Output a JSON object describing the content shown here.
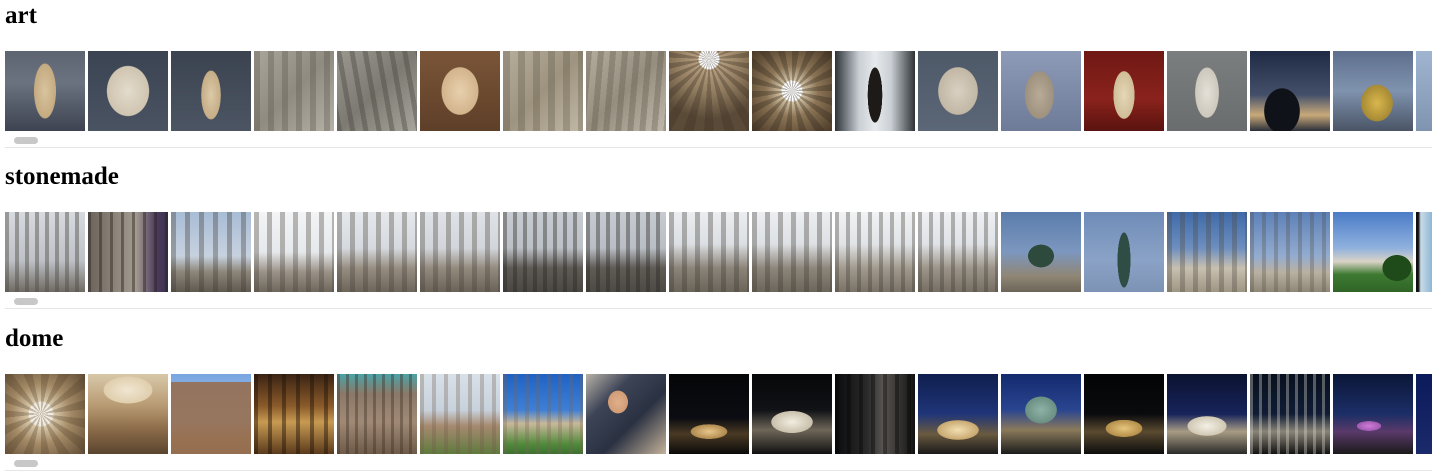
{
  "sections": [
    {
      "title": "art",
      "images": [
        {
          "name": "armless-female-statue-thumbnail",
          "bg": "linear-gradient(180deg,#5d6471 0%,#6b7380 40%,#3d4350 100%)",
          "fg": "radial-gradient(ellipse 18px 45px at 50% 50%, #d8c49f 0%, #c4aa80 60%, transparent 62%)"
        },
        {
          "name": "marble-head-thumbnail",
          "bg": "linear-gradient(180deg,#3b4452 0%,#4a5362 100%)",
          "fg": "radial-gradient(ellipse 32px 38px at 50% 50%, #e3dbcc 0%, #cfc4b0 65%, transparent 67%)"
        },
        {
          "name": "standing-statue-thumbnail",
          "bg": "linear-gradient(180deg,#3b4350 0%,#4c5563 100%)",
          "fg": "radial-gradient(ellipse 16px 40px at 50% 55%, #dbc9a8 0%, #c5ad86 60%, transparent 62%)"
        },
        {
          "name": "relief-panel-thumbnail",
          "bg": "linear-gradient(135deg,#a9a59b 0%,#8f8b80 50%,#b6b1a6 100%)",
          "fg": "repeating-linear-gradient(90deg, rgba(90,86,78,0.35) 0 6px, transparent 6px 14px)"
        },
        {
          "name": "carved-relief-thumbnail",
          "bg": "linear-gradient(135deg,#9a978f 0%,#7d7a72 50%,#a8a59c 100%)",
          "fg": "repeating-linear-gradient(80deg, rgba(70,68,62,0.4) 0 5px, transparent 5px 13px)"
        },
        {
          "name": "female-bust-thumbnail",
          "bg": "linear-gradient(180deg,#7a5538 0%,#5e3f28 100%)",
          "fg": "radial-gradient(ellipse 28px 36px at 50% 50%, #e8d0ae 0%, #d2b48c 65%, transparent 67%)"
        },
        {
          "name": "frieze-figures-thumbnail",
          "bg": "linear-gradient(135deg,#b7ad9b 0%,#9d937f 50%,#c2b8a6 100%)",
          "fg": "repeating-linear-gradient(90deg, rgba(100,92,78,0.35) 0 7px, transparent 7px 15px)"
        },
        {
          "name": "sarcophagus-relief-thumbnail",
          "bg": "linear-gradient(135deg,#b3ab9c 0%,#958d7e 50%,#c0b8aa 100%)",
          "fg": "repeating-linear-gradient(95deg, rgba(95,88,75,0.35) 0 6px, transparent 6px 12px)"
        },
        {
          "name": "coffered-ceiling-thumbnail",
          "bg": "radial-gradient(circle at 50% 10%, #ffffff 0 10px, #b69f80 11px, #8f7a5e 35px, #5a4a38 60px)",
          "fg": "repeating-conic-gradient(from 0deg at 50% 10%, rgba(60,48,36,0.35) 0 8deg, transparent 8deg 16deg)"
        },
        {
          "name": "dome-oculus-thumbnail",
          "bg": "radial-gradient(circle at 50% 50%, #ffffff 0 10px, #d2c2a4 11px, #8c7556 26px, #4d3c2a 55px)",
          "fg": "repeating-conic-gradient(from 0deg at 50% 50%, rgba(50,40,28,0.35) 0 10deg, transparent 10deg 20deg)"
        },
        {
          "name": "bronze-figure-thumbnail",
          "bg": "linear-gradient(90deg,#2e3338 0%,#c9cfd4 30%,#e7eaec 50%,#c9cfd4 70%,#2e3338 100%)",
          "fg": "radial-gradient(ellipse 9px 34px at 50% 55%, #1d1a17 0%, #1d1a17 80%, transparent 82%)"
        },
        {
          "name": "stone-face-thumbnail",
          "bg": "linear-gradient(180deg,#4e5968 0%,#5b6677 100%)",
          "fg": "radial-gradient(ellipse 30px 36px at 50% 50%, #d9d0c2 0%, #c2b7a5 65%, transparent 67%)"
        },
        {
          "name": "seated-statue-thumbnail",
          "bg": "linear-gradient(180deg,#8d9bb8 0%,#6d7b98 100%)",
          "fg": "radial-gradient(ellipse 22px 36px at 48% 55%, #b8ab98 0%, #9e917d 65%, transparent 67%)"
        },
        {
          "name": "red-wall-statue-thumbnail",
          "bg": "linear-gradient(180deg,#6f1814 0%,#8a221c 60%,#5a130f 100%)",
          "fg": "radial-gradient(ellipse 16px 36px at 50% 55%, #e6d7b8 0%, #cfbd97 65%, transparent 67%)"
        },
        {
          "name": "draped-statue-thumbnail",
          "bg": "linear-gradient(180deg,#7b7e7f 0%,#6a6d6e 100%)",
          "fg": "radial-gradient(ellipse 18px 38px at 50% 52%, #e4e0d8 0%, #cdc8bd 65%, transparent 67%)"
        },
        {
          "name": "eiffel-silhouette-thumbnail",
          "bg": "linear-gradient(180deg,#1f2b44 0%,#44506a 55%,#c9a97a 80%,#2a2f3a 100%)",
          "fg": "radial-gradient(ellipse 22px 28px at 40% 75%, #0f1218 0%, #0f1218 80%, transparent 82%)"
        },
        {
          "name": "gilded-ornament-thumbnail",
          "bg": "linear-gradient(180deg,#5d6f8c 0%,#7f92ae 50%,#4a5465 100%)",
          "fg": "radial-gradient(ellipse 26px 30px at 55% 65%, #d9b74d 0%, #a78a34 60%, transparent 62%)"
        },
        {
          "name": "partial-thumbnail",
          "bg": "linear-gradient(180deg,#9fb5d0 0%,#7f94b0 100%)",
          "fg": "none"
        }
      ]
    },
    {
      "title": "stonemade",
      "images": [
        {
          "name": "gate-sign-thumbnail",
          "bg": "linear-gradient(180deg,#d7dadf 0%,#bfc3c8 60%,#6f6a62 100%)",
          "fg": "repeating-linear-gradient(90deg, rgba(80,76,70,0.45) 0 4px, transparent 4px 10px)"
        },
        {
          "name": "columns-flags-thumbnail",
          "bg": "linear-gradient(90deg,#6b625a 0%,#8d857c 35%,#a39b90 60%,#4e3b5c 85%,#3a3150 100%)",
          "fg": "repeating-linear-gradient(90deg, rgba(40,36,32,0.45) 0 3px, transparent 3px 11px)"
        },
        {
          "name": "brandenburg-gate-angle-thumbnail",
          "bg": "linear-gradient(180deg,#a8bcd6 0%,#c7d2df 55%,#8d8579 75%,#5f5950 100%)",
          "fg": "repeating-linear-gradient(90deg, rgba(60,56,50,0.35) 0 5px, transparent 5px 14px)"
        },
        {
          "name": "brandenburg-gate-bright-thumbnail",
          "bg": "linear-gradient(180deg,#f2f4f6 0%,#e6e9ec 50%,#9a9287 75%,#6f675c 100%)",
          "fg": "repeating-linear-gradient(90deg, rgba(70,64,56,0.35) 0 5px, transparent 5px 13px)"
        },
        {
          "name": "brandenburg-gate-side-thumbnail",
          "bg": "linear-gradient(180deg,#e5e8eb 0%,#d6dadf 45%,#978e82 70%,#6d655a 100%)",
          "fg": "repeating-linear-gradient(90deg, rgba(70,64,56,0.35) 0 5px, transparent 5px 13px)"
        },
        {
          "name": "brandenburg-gate-wide-thumbnail",
          "bg": "linear-gradient(180deg,#dfe3e7 0%,#d2d6db 45%,#948b7f 70%,#6a6257 100%)",
          "fg": "repeating-linear-gradient(90deg, rgba(70,64,56,0.35) 0 5px, transparent 5px 13px)"
        },
        {
          "name": "brandenburg-gate-front-thumbnail",
          "bg": "linear-gradient(180deg,#c7ccd2 0%,#bcc1c7 45%,#5e5a54 70%,#4a4743 100%)",
          "fg": "repeating-linear-gradient(90deg, rgba(40,38,34,0.4) 0 4px, transparent 4px 10px)"
        },
        {
          "name": "brandenburg-gate-overcast-thumbnail",
          "bg": "linear-gradient(180deg,#c6cbd1 0%,#b9bec5 45%,#5f5b55 70%,#4d4a45 100%)",
          "fg": "repeating-linear-gradient(90deg, rgba(40,38,34,0.4) 0 4px, transparent 4px 10px)"
        },
        {
          "name": "brandenburg-gate-quadriga-thumbnail",
          "bg": "linear-gradient(180deg,#ebedf0 0%,#dcdfe3 40%,#8c8479 70%,#6b6459 100%)",
          "fg": "repeating-linear-gradient(90deg, rgba(60,56,50,0.35) 0 5px, transparent 5px 13px)"
        },
        {
          "name": "brandenburg-gate-day-thumbnail",
          "bg": "linear-gradient(180deg,#eceef1 0%,#dde0e4 40%,#8d867b 70%,#6c655a 100%)",
          "fg": "repeating-linear-gradient(90deg, rgba(60,56,50,0.35) 0 5px, transparent 5px 13px)"
        },
        {
          "name": "brandenburg-gate-columns-thumbnail",
          "bg": "linear-gradient(180deg,#f0f2f4 0%,#e1e4e7 40%,#a29a8e 70%,#7a7266 100%)",
          "fg": "repeating-linear-gradient(90deg, rgba(60,56,50,0.35) 0 4px, transparent 4px 11px)"
        },
        {
          "name": "brandenburg-gate-clear-thumbnail",
          "bg": "linear-gradient(180deg,#eef0f3 0%,#dfe2e6 40%,#9d9589 70%,#766e62 100%)",
          "fg": "repeating-linear-gradient(90deg, rgba(60,56,50,0.35) 0 4px, transparent 4px 11px)"
        },
        {
          "name": "quadriga-blue-sky-thumbnail",
          "bg": "linear-gradient(180deg,#5b7cab 0%,#7c97bf 50%,#8f8675 80%,#6c6557 100%)",
          "fg": "radial-gradient(ellipse 16px 14px at 50% 55%, #2d4a3d 0%, #2d4a3d 80%, transparent 82%)"
        },
        {
          "name": "victory-column-thumbnail",
          "bg": "linear-gradient(180deg,#6f8cb8 0%,#8aa2c6 60%,#7d93b5 100%)",
          "fg": "radial-gradient(ellipse 8px 34px at 50% 60%, #2f4d44 0%, #2f4d44 80%, transparent 82%)"
        },
        {
          "name": "gate-blue-sky-thumbnail",
          "bg": "linear-gradient(180deg,#3f6aa8 0%,#6d8fc0 45%,#c8c0b0 70%,#9e9584 100%)",
          "fg": "repeating-linear-gradient(90deg, rgba(80,74,64,0.35) 0 5px, transparent 5px 13px)"
        },
        {
          "name": "gate-distant-thumbnail",
          "bg": "linear-gradient(180deg,#5c80b8 0%,#93acd0 55%,#b9b1a2 75%,#8f8776 100%)",
          "fg": "repeating-linear-gradient(90deg, rgba(80,74,64,0.3) 0 4px, transparent 4px 12px)"
        },
        {
          "name": "reichstag-lawn-thumbnail",
          "bg": "linear-gradient(180deg,#4b7cc7 0%,#8fb1de 45%,#d9d3c6 62%,#3e7a32 78%,#2f6426 100%)",
          "fg": "radial-gradient(ellipse 18px 16px at 80% 70%, #1f4a1a 0%, #1f4a1a 80%, transparent 82%)"
        },
        {
          "name": "partial-thumbnail",
          "bg": "linear-gradient(90deg,#111 0%,#111 15%,#c9dbe8 30%,#8fb6d4 100%)",
          "fg": "none"
        }
      ]
    },
    {
      "title": "dome",
      "images": [
        {
          "name": "dome-interior-thumbnail",
          "bg": "radial-gradient(circle at 45% 50%, #f2ece0 0 12px, #d8c8aa 13px, #a48a66 30px, #5e4a34 60px)",
          "fg": "repeating-conic-gradient(from 0deg at 45% 50%, rgba(80,62,40,0.3) 0 12deg, transparent 12deg 24deg)"
        },
        {
          "name": "cathedral-dome-thumbnail",
          "bg": "linear-gradient(180deg,#d8c8a8 0%,#b79a72 40%,#8a6a48 70%,#5a4530 100%)",
          "fg": "radial-gradient(ellipse 40px 22px at 50% 20%, #f0e6d2 0%, #e0cfae 60%, transparent 62%)"
        },
        {
          "name": "gothic-spire-thumbnail",
          "bg": "linear-gradient(180deg,#7aa6e0 0%,#9fc0ea 60%,#b18e6a 80%,#8a6a4a 100%)",
          "fg": "linear-gradient(180deg, transparent 0%, transparent 10%, rgba(150,110,80,0.9) 10%)"
        },
        {
          "name": "gothic-nave-thumbnail",
          "bg": "linear-gradient(180deg,#3b2414 0%,#8a5a2a 40%,#c89a52 60%,#5a3a1c 100%)",
          "fg": "repeating-linear-gradient(90deg, rgba(30,18,8,0.45) 0 4px, transparent 4px 14px)"
        },
        {
          "name": "cathedral-facade-thumbnail",
          "bg": "linear-gradient(180deg,#4aa3a8 0%,#8c7868 25%,#a08a76 60%,#6e5a48 100%)",
          "fg": "repeating-linear-gradient(90deg, rgba(60,46,34,0.4) 0 3px, transparent 3px 9px)"
        },
        {
          "name": "twin-spires-thumbnail",
          "bg": "linear-gradient(180deg,#d8e0e8 0%,#c8d2dc 45%,#a68a70 65%,#5f7a3e 100%)",
          "fg": "repeating-linear-gradient(90deg, rgba(110,90,70,0.3) 0 4px, transparent 4px 12px)"
        },
        {
          "name": "cathedral-blue-sky-thumbnail",
          "bg": "linear-gradient(180deg,#1f62c4 0%,#3f7fd6 45%,#c8b89a 62%,#4f8a3a 88%,#3c7030 100%)",
          "fg": "repeating-linear-gradient(90deg, rgba(120,100,80,0.3) 0 4px, transparent 4px 11px)"
        },
        {
          "name": "police-officers-thumbnail",
          "bg": "linear-gradient(135deg,#b7b2a8 0%,#3d4456 30%,#2a3142 60%,#c4b29a 100%)",
          "fg": "radial-gradient(ellipse 14px 16px at 40% 35%, #e0b08a 0%, #d09c76 70%, transparent 72%)"
        },
        {
          "name": "capitol-night-thumbnail",
          "bg": "linear-gradient(180deg,#050608 0%,#0b0d12 55%,#4a3a24 75%,#0a0a0a 100%)",
          "fg": "radial-gradient(ellipse 30px 12px at 50% 72%, #e8c68a 0%, #b08a50 60%, transparent 62%)"
        },
        {
          "name": "city-hall-night-thumbnail",
          "bg": "linear-gradient(180deg,#060708 0%,#101216 45%,#6e6658 70%,#111 100%)",
          "fg": "radial-gradient(ellipse 34px 18px at 50% 60%, #f2ede0 0%, #c9c0ac 60%, transparent 62%)"
        },
        {
          "name": "dark-facade-thumbnail",
          "bg": "linear-gradient(90deg,#0b0c0e 0%,#2a2a2a 40%,#585450 60%,#121212 100%)",
          "fg": "repeating-linear-gradient(90deg, rgba(0,0,0,0.35) 0 4px, transparent 4px 12px)"
        },
        {
          "name": "dome-blue-hour-thumbnail",
          "bg": "linear-gradient(180deg,#0f1e4e 0%,#1f3578 50%,#6a5a40 75%,#1a1a1a 100%)",
          "fg": "radial-gradient(ellipse 34px 16px at 50% 70%, #f2dfb2 0%, #c8a870 60%, transparent 62%)"
        },
        {
          "name": "capitol-dome-blue-thumbnail",
          "bg": "linear-gradient(180deg,#132a6e 0%,#2a4590 45%,#8a7a5a 70%,#1c1c1c 100%)",
          "fg": "radial-gradient(ellipse 26px 22px at 50% 45%, #8fb2a6 0%, #6b8f82 60%, transparent 62%)"
        },
        {
          "name": "dome-night-green-thumbnail",
          "bg": "linear-gradient(180deg,#030405 0%,#0a0b0d 50%,#5a4a30 72%,#0c0c0c 100%)",
          "fg": "radial-gradient(ellipse 30px 14px at 50% 68%, #e6c67e 0%, #b48e4a 60%, transparent 62%)"
        },
        {
          "name": "lit-dome-thumbnail",
          "bg": "linear-gradient(180deg,#0b1230 0%,#17245a 50%,#a89c84 72%,#2a2a2a 100%)",
          "fg": "radial-gradient(ellipse 32px 16px at 50% 65%, #f4f0e6 0%, #d0c8b4 60%, transparent 62%)"
        },
        {
          "name": "government-building-night-thumbnail",
          "bg": "linear-gradient(180deg,#07101e 0%,#0f1c34 50%,#8a8478 72%,#121212 100%)",
          "fg": "repeating-linear-gradient(90deg, rgba(230,226,214,0.35) 0 3px, transparent 3px 9px)"
        },
        {
          "name": "street-night-thumbnail",
          "bg": "linear-gradient(180deg,#0b1638 0%,#1b2e66 50%,#5a3a6a 72%,#1a1a1a 100%)",
          "fg": "radial-gradient(ellipse 20px 8px at 45% 65%, #d07cd8 0%, #a05ab0 60%, transparent 62%)"
        },
        {
          "name": "partial-thumbnail",
          "bg": "linear-gradient(180deg,#0a1a5a 0%,#1a2a6a 100%)",
          "fg": "none"
        }
      ]
    }
  ]
}
